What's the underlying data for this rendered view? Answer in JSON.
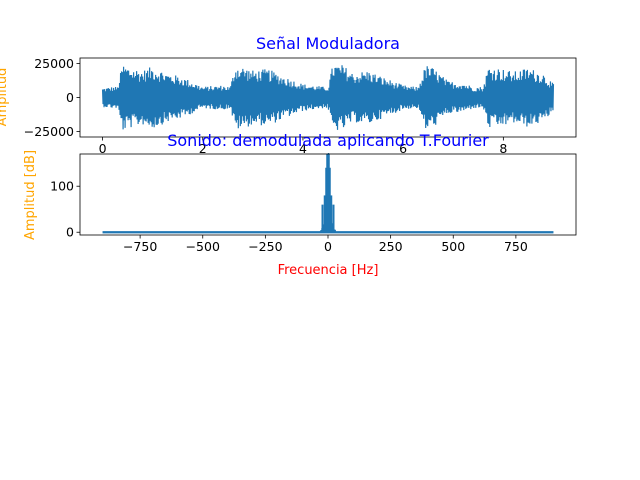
{
  "colors": {
    "series": "#1f77b4",
    "title": "#0000ff",
    "xlabel": "#ff0000",
    "ylabel": "#ffa500"
  },
  "chart_data": [
    {
      "type": "line",
      "title": "Señal Moduladora",
      "xlabel": "",
      "ylabel": "Amplitud",
      "xlim": [
        -0.45,
        9.45
      ],
      "ylim": [
        -29000,
        29000
      ],
      "xticks": [
        0,
        2,
        4,
        6,
        8
      ],
      "yticks": [
        25000,
        0,
        -25000
      ],
      "ytick_labels": [
        "25000",
        "0",
        "−25000"
      ],
      "x_range": [
        0,
        9
      ],
      "envelope": {
        "x": [
          0,
          0.2,
          0.3,
          0.4,
          0.5,
          0.8,
          1.0,
          1.3,
          1.6,
          2.0,
          2.4,
          2.55,
          2.65,
          2.8,
          3.0,
          3.3,
          3.6,
          4.0,
          4.4,
          4.5,
          4.6,
          4.8,
          5.0,
          5.3,
          5.6,
          6.0,
          6.2,
          6.3,
          6.45,
          6.6,
          6.9,
          7.2,
          7.4,
          7.6,
          7.7,
          7.9,
          8.2,
          8.5,
          8.8,
          9.0
        ],
        "max": [
          7000,
          8000,
          8000,
          25000,
          23000,
          20000,
          23000,
          18000,
          15000,
          8000,
          9000,
          8000,
          24000,
          23000,
          20000,
          21000,
          16000,
          10000,
          8000,
          8000,
          25000,
          24000,
          18000,
          20000,
          15000,
          9000,
          8000,
          8000,
          24000,
          22000,
          12000,
          11000,
          8000,
          8000,
          23000,
          22000,
          19000,
          22000,
          18000,
          10000
        ]
      },
      "grid": false
    },
    {
      "type": "line",
      "title": "Sonido: demodulada aplicando T.Fourier",
      "xlabel": "Frecuencia [Hz]",
      "ylabel": "Amplitud [dB]",
      "xlim": [
        -990,
        990
      ],
      "ylim": [
        -6,
        170
      ],
      "xticks": [
        -750,
        -500,
        -250,
        0,
        250,
        500,
        750
      ],
      "xtick_labels": [
        "−750",
        "−500",
        "−250",
        "0",
        "250",
        "500",
        "750"
      ],
      "yticks": [
        0,
        100
      ],
      "x_range": [
        -900,
        900
      ],
      "peaks": [
        {
          "freq": -22,
          "amplitude": 60
        },
        {
          "freq": -13,
          "amplitude": 80
        },
        {
          "freq": -7,
          "amplitude": 140
        },
        {
          "freq": -3,
          "amplitude": 170
        },
        {
          "freq": 0,
          "amplitude": 170
        },
        {
          "freq": 3,
          "amplitude": 170
        },
        {
          "freq": 7,
          "amplitude": 140
        },
        {
          "freq": 13,
          "amplitude": 80
        },
        {
          "freq": 22,
          "amplitude": 60
        }
      ],
      "grid": false
    }
  ]
}
